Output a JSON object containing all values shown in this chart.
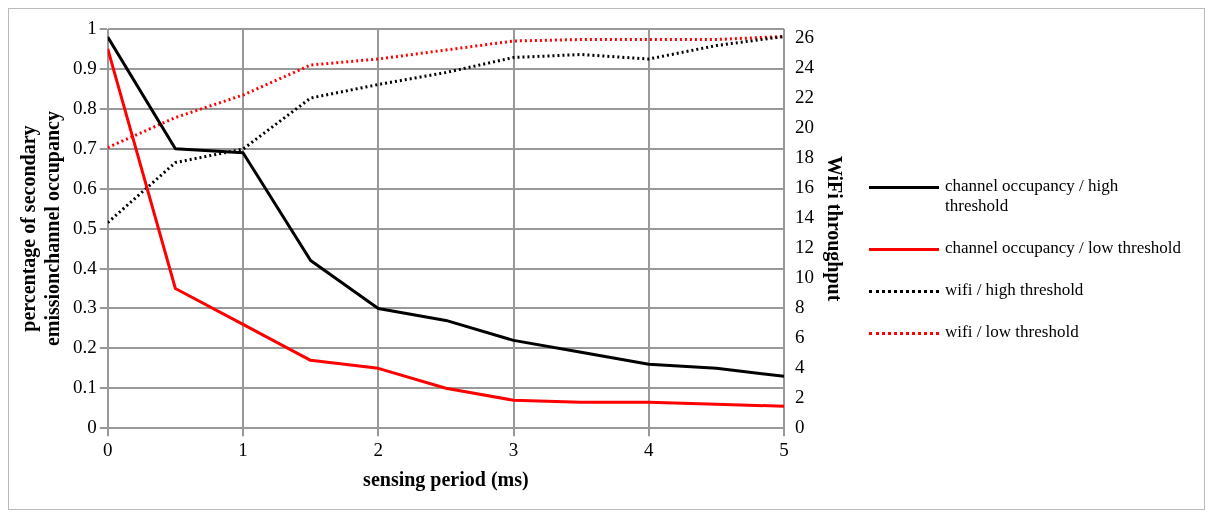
{
  "chart_data": {
    "type": "line",
    "xlabel": "sensing period (ms)",
    "ylabel": "percentage of secondary emissionchannel occupancy",
    "y2label": "WiFi throughput",
    "x": [
      0,
      0.5,
      1,
      1.5,
      2,
      2.5,
      3,
      3.5,
      4,
      4.5,
      5
    ],
    "series": [
      {
        "name": "channel occupancy / high threshold",
        "color": "#000000",
        "line_style": "solid",
        "values": [
          0.98,
          0.7,
          0.69,
          0.42,
          0.3,
          0.27,
          0.22,
          0.19,
          0.16,
          0.15,
          0.13
        ]
      },
      {
        "name": "channel occupancy / low threshold",
        "color": "#ff0000",
        "line_style": "solid",
        "values": [
          0.95,
          0.35,
          0.26,
          0.17,
          0.15,
          0.1,
          0.07,
          0.065,
          0.065,
          0.06,
          0.055
        ]
      },
      {
        "name": "wifi / high threshold",
        "color": "#000000",
        "line_style": "dotted",
        "axis": "y2",
        "values": [
          13.7,
          17.7,
          18.6,
          22.0,
          22.9,
          23.7,
          24.7,
          24.9,
          24.6,
          25.5,
          26.1
        ]
      },
      {
        "name": "wifi / low threshold",
        "color": "#ff0000",
        "line_style": "dotted",
        "axis": "y2",
        "values": [
          18.7,
          20.7,
          22.2,
          24.2,
          24.6,
          25.2,
          25.8,
          25.9,
          25.9,
          25.9,
          26.1
        ]
      }
    ],
    "xlim": [
      0,
      5
    ],
    "xticks": [
      0,
      1,
      2,
      3,
      4,
      5
    ],
    "ylim": [
      0,
      1
    ],
    "yticks": [
      0,
      0.1,
      0.2,
      0.3,
      0.4,
      0.5,
      0.6,
      0.7,
      0.8,
      0.9,
      1
    ],
    "y2lim": [
      0,
      26.6
    ],
    "y2ticks": [
      0,
      2,
      4,
      6,
      8,
      10,
      12,
      14,
      16,
      18,
      20,
      22,
      24,
      26
    ],
    "grid": true,
    "legend": "right",
    "marker": "none"
  }
}
